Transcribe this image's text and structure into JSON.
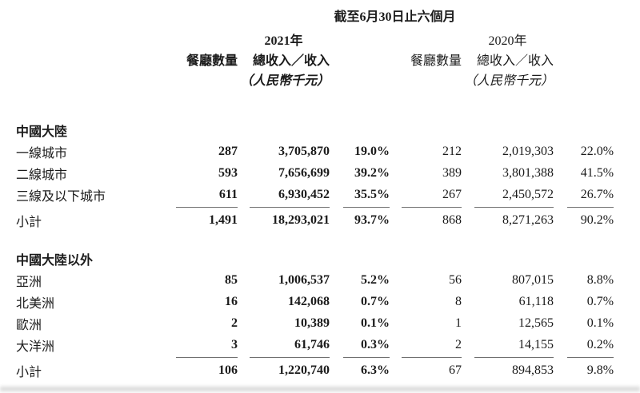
{
  "table": {
    "title": "截至6月30日止六個月",
    "column_groups": [
      {
        "year": "2021年",
        "restaurants_header": "餐廳數量",
        "revenue_header": "總收入／收入",
        "unit": "（人民幣千元）",
        "emphasis": true
      },
      {
        "year": "2020年",
        "restaurants_header": "餐廳數量",
        "revenue_header": "總收入／收入",
        "unit": "（人民幣千元）",
        "emphasis": false
      }
    ],
    "sections": [
      {
        "name": "中國大陸",
        "rows": [
          {
            "label": "一線城市",
            "values": [
              "287",
              "3,705,870",
              "19.0%",
              "212",
              "2,019,303",
              "22.0%"
            ]
          },
          {
            "label": "二線城市",
            "values": [
              "593",
              "7,656,699",
              "39.2%",
              "389",
              "3,801,388",
              "41.5%"
            ]
          },
          {
            "label": "三線及以下城市",
            "values": [
              "611",
              "6,930,452",
              "35.5%",
              "267",
              "2,450,572",
              "26.7%"
            ]
          }
        ],
        "subtotal": {
          "label": "小計",
          "values": [
            "1,491",
            "18,293,021",
            "93.7%",
            "868",
            "8,271,263",
            "90.2%"
          ]
        }
      },
      {
        "name": "中國大陸以外",
        "rows": [
          {
            "label": "亞洲",
            "values": [
              "85",
              "1,006,537",
              "5.2%",
              "56",
              "807,015",
              "8.8%"
            ]
          },
          {
            "label": "北美洲",
            "values": [
              "16",
              "142,068",
              "0.7%",
              "8",
              "61,118",
              "0.7%"
            ]
          },
          {
            "label": "歐洲",
            "values": [
              "2",
              "10,389",
              "0.1%",
              "1",
              "12,565",
              "0.1%"
            ]
          },
          {
            "label": "大洋洲",
            "values": [
              "3",
              "61,746",
              "0.3%",
              "2",
              "14,155",
              "0.2%"
            ]
          }
        ],
        "subtotal": {
          "label": "小計",
          "values": [
            "106",
            "1,220,740",
            "6.3%",
            "67",
            "894,853",
            "9.8%"
          ]
        }
      }
    ]
  },
  "colors": {
    "text": "#1b1b1b",
    "subtotal_rule": "#6f6f6f",
    "background": "#ffffff",
    "bottom_artifact": "#d4d4d4"
  }
}
